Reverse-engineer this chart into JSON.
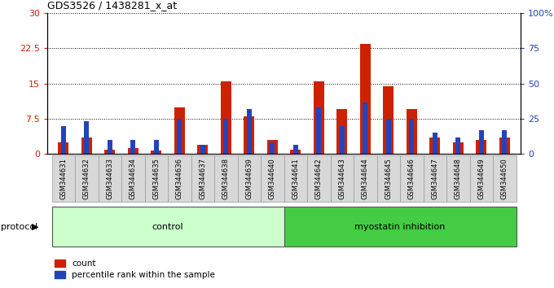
{
  "title": "GDS3526 / 1438281_x_at",
  "samples": [
    "GSM344631",
    "GSM344632",
    "GSM344633",
    "GSM344634",
    "GSM344635",
    "GSM344636",
    "GSM344637",
    "GSM344638",
    "GSM344639",
    "GSM344640",
    "GSM344641",
    "GSM344642",
    "GSM344643",
    "GSM344644",
    "GSM344645",
    "GSM344646",
    "GSM344647",
    "GSM344648",
    "GSM344649",
    "GSM344650"
  ],
  "count": [
    2.5,
    3.5,
    1.0,
    1.2,
    0.8,
    10.0,
    2.0,
    15.5,
    8.0,
    3.0,
    1.0,
    15.5,
    9.5,
    23.5,
    14.5,
    9.5,
    3.5,
    2.5,
    3.0,
    3.5
  ],
  "percentile": [
    6,
    7,
    3,
    3,
    3,
    7.5,
    2,
    7.5,
    9.5,
    2.5,
    2,
    10,
    6,
    11,
    7.5,
    7.5,
    4.5,
    3.5,
    5,
    5
  ],
  "n_control": 10,
  "n_myo": 10,
  "left_ylim": [
    0,
    30
  ],
  "right_ylim": [
    0,
    100
  ],
  "left_yticks": [
    0,
    7.5,
    15,
    22.5,
    30
  ],
  "right_yticks": [
    0,
    25,
    50,
    75,
    100
  ],
  "left_yticklabels": [
    "0",
    "7.5",
    "15",
    "22.5",
    "30"
  ],
  "right_yticklabels": [
    "0",
    "25",
    "50",
    "75",
    "100%"
  ],
  "count_color": "#cc2200",
  "percentile_color": "#2244bb",
  "control_bg": "#ccffcc",
  "myostatin_bg": "#44cc44",
  "xtick_area_bg": "#d0d0d0",
  "legend_count_label": "count",
  "legend_percentile_label": "percentile rank within the sample",
  "protocol_label": "protocol",
  "control_label": "control",
  "myostatin_label": "myostatin inhibition"
}
